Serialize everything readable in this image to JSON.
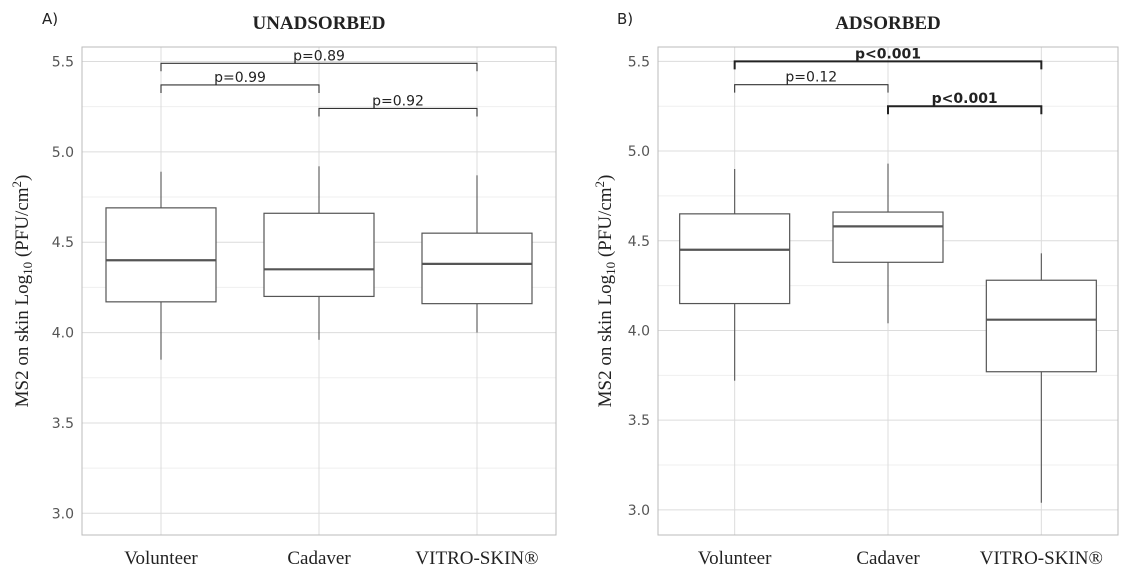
{
  "chart_data": [
    {
      "type": "box",
      "panel_label": "A)",
      "title": "UNADSORBED",
      "ylabel": {
        "prefix": "MS2 on skin Log",
        "sub": "10",
        "mid": " (PFU/cm",
        "sup": "2",
        "suffix": ")"
      },
      "ylim": [
        2.88,
        5.58
      ],
      "yticks": [
        "3.0",
        "3.5",
        "4.0",
        "4.5",
        "5.0",
        "5.5"
      ],
      "ytick_values": [
        3.0,
        3.5,
        4.0,
        4.5,
        5.0,
        5.5
      ],
      "grid": true,
      "categories": [
        "Volunteer",
        "Cadaver",
        "VITRO-SKIN®"
      ],
      "boxes": [
        {
          "name": "Volunteer",
          "whisker_low": 3.85,
          "q1": 4.17,
          "median": 4.4,
          "q3": 4.69,
          "whisker_high": 4.89
        },
        {
          "name": "Cadaver",
          "whisker_low": 3.96,
          "q1": 4.2,
          "median": 4.35,
          "q3": 4.66,
          "whisker_high": 4.92
        },
        {
          "name": "VITRO-SKIN®",
          "whisker_low": 4.0,
          "q1": 4.16,
          "median": 4.38,
          "q3": 4.55,
          "whisker_high": 4.87
        }
      ],
      "comparisons": [
        {
          "from": 0,
          "to": 2,
          "y": 5.49,
          "label": "p=0.89",
          "bold": false
        },
        {
          "from": 0,
          "to": 1,
          "y": 5.37,
          "label": "p=0.99",
          "bold": false
        },
        {
          "from": 1,
          "to": 2,
          "y": 5.24,
          "label": "p=0.92",
          "bold": false
        }
      ]
    },
    {
      "type": "box",
      "panel_label": "B)",
      "title": "ADSORBED",
      "ylabel": {
        "prefix": "MS2 on skin Log",
        "sub": "10",
        "mid": " (PFU/cm",
        "sup": "2",
        "suffix": ")"
      },
      "ylim": [
        2.86,
        5.58
      ],
      "yticks": [
        "3.0",
        "3.5",
        "4.0",
        "4.5",
        "5.0",
        "5.5"
      ],
      "ytick_values": [
        3.0,
        3.5,
        4.0,
        4.5,
        5.0,
        5.5
      ],
      "grid": true,
      "categories": [
        "Volunteer",
        "Cadaver",
        "VITRO-SKIN®"
      ],
      "boxes": [
        {
          "name": "Volunteer",
          "whisker_low": 3.72,
          "q1": 4.15,
          "median": 4.45,
          "q3": 4.65,
          "whisker_high": 4.9
        },
        {
          "name": "Cadaver",
          "whisker_low": 4.04,
          "q1": 4.38,
          "median": 4.58,
          "q3": 4.66,
          "whisker_high": 4.93
        },
        {
          "name": "VITRO-SKIN®",
          "whisker_low": 3.04,
          "q1": 3.77,
          "median": 4.06,
          "q3": 4.28,
          "whisker_high": 4.43
        }
      ],
      "comparisons": [
        {
          "from": 0,
          "to": 2,
          "y": 5.5,
          "label": "p<0.001",
          "bold": true
        },
        {
          "from": 0,
          "to": 1,
          "y": 5.37,
          "label": "p=0.12",
          "bold": false
        },
        {
          "from": 1,
          "to": 2,
          "y": 5.25,
          "label": "p<0.001",
          "bold": true
        }
      ]
    }
  ]
}
